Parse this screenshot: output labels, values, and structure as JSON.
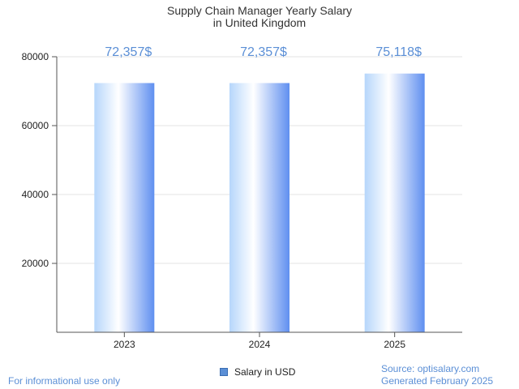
{
  "chart_data": {
    "type": "bar",
    "title_lines": [
      "Supply Chain Manager Yearly Salary",
      "in United Kingdom"
    ],
    "categories": [
      "2023",
      "2024",
      "2025"
    ],
    "series": [
      {
        "name": "Salary in USD",
        "values": [
          72357,
          72357,
          75118
        ]
      }
    ],
    "data_labels": [
      "72,357$",
      "72,357$",
      "75,118$"
    ],
    "y_ticks": [
      "20000",
      "40000",
      "60000",
      "80000"
    ],
    "ylim": [
      0,
      80000
    ],
    "grid": true,
    "legend_position": "bottom-center"
  },
  "footer": {
    "disclaimer": "For informational use only",
    "source": "Source: optisalary.com",
    "generated": "Generated February 2025"
  },
  "colors": {
    "bar_light": "#ffffff",
    "bar_mid": "#b6d6fb",
    "bar_dark": "#5f8ff0",
    "label": "#5b8fd6",
    "grid": "#e3e3e3",
    "axis": "#555555"
  }
}
